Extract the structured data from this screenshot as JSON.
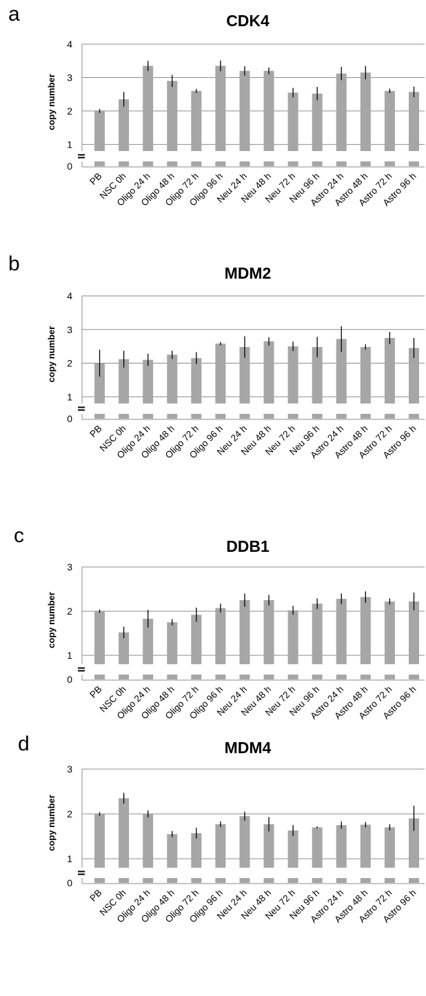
{
  "chart_data": [
    {
      "type": "bar",
      "panel_label": "a",
      "title": "CDK4",
      "ylabel": "copy number",
      "ylim": [
        0,
        4
      ],
      "yticks": [
        0,
        1,
        2,
        3,
        4
      ],
      "axis_break": true,
      "grid": true,
      "bar_color": "#a6a6a6",
      "categories": [
        "PB",
        "NSC 0h",
        "Oligo 24 h",
        "Oligo 48 h",
        "Oligo 72 h",
        "Oligo 96 h",
        "Neu 24 h",
        "Neu 48 h",
        "Neu 72 h",
        "Neu 96 h",
        "Astro 24 h",
        "Astro 48 h",
        "Astro 72 h",
        "Astro 96 h"
      ],
      "values": [
        2.0,
        2.35,
        3.35,
        2.9,
        2.6,
        3.35,
        3.2,
        3.2,
        2.55,
        2.52,
        3.12,
        3.15,
        2.6,
        2.57
      ],
      "errors": [
        0.06,
        0.22,
        0.15,
        0.18,
        0.06,
        0.16,
        0.14,
        0.1,
        0.14,
        0.2,
        0.2,
        0.2,
        0.07,
        0.16
      ]
    },
    {
      "type": "bar",
      "panel_label": "b",
      "title": "MDM2",
      "ylabel": "copy number",
      "ylim": [
        0,
        4
      ],
      "yticks": [
        0,
        1,
        2,
        3,
        4
      ],
      "axis_break": true,
      "grid": true,
      "bar_color": "#a6a6a6",
      "categories": [
        "PB",
        "NSC 0h",
        "Oligo 24 h",
        "Oligo 48 h",
        "Oligo 72 h",
        "Oligo 96 h",
        "Neu 24 h",
        "Neu 48 h",
        "Neu 72 h",
        "Neu 96 h",
        "Astro 24 h",
        "Astro 48 h",
        "Astro 72 h",
        "Astro 96 h"
      ],
      "values": [
        2.0,
        2.12,
        2.1,
        2.25,
        2.15,
        2.58,
        2.48,
        2.65,
        2.5,
        2.48,
        2.72,
        2.48,
        2.75,
        2.45
      ],
      "errors": [
        0.4,
        0.25,
        0.18,
        0.12,
        0.18,
        0.05,
        0.32,
        0.12,
        0.14,
        0.3,
        0.38,
        0.08,
        0.18,
        0.3
      ]
    },
    {
      "type": "bar",
      "panel_label": "c",
      "title": "DDB1",
      "ylabel": "copy number",
      "ylim": [
        0,
        3
      ],
      "yticks": [
        0,
        1,
        2,
        3
      ],
      "axis_break": true,
      "grid": true,
      "bar_color": "#a6a6a6",
      "categories": [
        "PB",
        "NSC 0h",
        "Oligo 24 h",
        "Oligo 48 h",
        "Oligo 72 h",
        "Oligo 96 h",
        "Neu 24 h",
        "Neu 48 h",
        "Neu 72 h",
        "Neu 96 h",
        "Astro 24 h",
        "Astro 48 h",
        "Astro 72 h",
        "Astro 96 h"
      ],
      "values": [
        2.0,
        1.52,
        1.83,
        1.75,
        1.92,
        2.07,
        2.25,
        2.25,
        2.02,
        2.17,
        2.28,
        2.32,
        2.22,
        2.22
      ],
      "errors": [
        0.04,
        0.13,
        0.2,
        0.07,
        0.16,
        0.1,
        0.15,
        0.12,
        0.1,
        0.12,
        0.12,
        0.13,
        0.07,
        0.2
      ]
    },
    {
      "type": "bar",
      "panel_label": "d",
      "title": "MDM4",
      "ylabel": "copy number",
      "ylim": [
        0,
        3
      ],
      "yticks": [
        0,
        1,
        2,
        3
      ],
      "axis_break": true,
      "grid": true,
      "bar_color": "#a6a6a6",
      "categories": [
        "PB",
        "NSC 0h",
        "Oligo 24 h",
        "Oligo 48 h",
        "Oligo 72 h",
        "Oligo 96 h",
        "Neu 24 h",
        "Neu 48 h",
        "Neu 72 h",
        "Neu 96 h",
        "Astro 24 h",
        "Astro 48 h",
        "Astro 72 h",
        "Astro 96 h"
      ],
      "values": [
        2.0,
        2.35,
        2.0,
        1.55,
        1.57,
        1.77,
        1.95,
        1.77,
        1.63,
        1.7,
        1.75,
        1.76,
        1.7,
        1.9
      ],
      "errors": [
        0.04,
        0.12,
        0.08,
        0.07,
        0.12,
        0.06,
        0.1,
        0.16,
        0.12,
        0.02,
        0.08,
        0.06,
        0.07,
        0.28
      ]
    }
  ]
}
